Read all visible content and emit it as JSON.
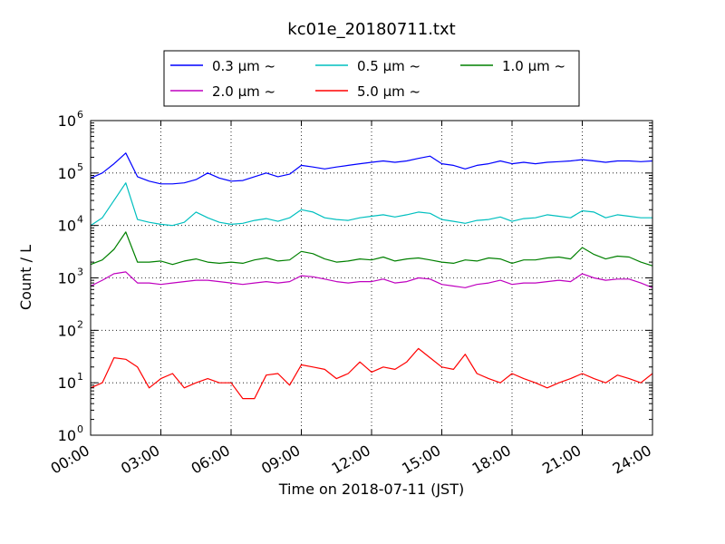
{
  "chart_data": {
    "type": "line",
    "title": "kc01e_20180711.txt",
    "xlabel": "Time on 2018-07-11 (JST)",
    "ylabel": "Count / L",
    "y_scale": "log",
    "ylim": [
      1,
      1000000
    ],
    "xlim": [
      "00:00",
      "24:00"
    ],
    "x_ticks": [
      "00:00",
      "03:00",
      "06:00",
      "09:00",
      "12:00",
      "15:00",
      "18:00",
      "21:00",
      "24:00"
    ],
    "y_ticks": [
      {
        "value": 1,
        "base": "10",
        "exp": "0"
      },
      {
        "value": 10,
        "base": "10",
        "exp": "1"
      },
      {
        "value": 100,
        "base": "10",
        "exp": "2"
      },
      {
        "value": 1000,
        "base": "10",
        "exp": "3"
      },
      {
        "value": 10000,
        "base": "10",
        "exp": "4"
      },
      {
        "value": 100000,
        "base": "10",
        "exp": "5"
      },
      {
        "value": 1000000,
        "base": "10",
        "exp": "6"
      }
    ],
    "grid": true,
    "legend_position": "top-center",
    "legend": [
      "0.3 μm ~",
      "0.5 μm ~",
      "1.0 μm ~",
      "2.0 μm ~",
      "5.0 μm ~"
    ],
    "x": [
      "00:00",
      "00:30",
      "01:00",
      "01:30",
      "02:00",
      "02:30",
      "03:00",
      "03:30",
      "04:00",
      "04:30",
      "05:00",
      "05:30",
      "06:00",
      "06:30",
      "07:00",
      "07:30",
      "08:00",
      "08:30",
      "09:00",
      "09:30",
      "10:00",
      "10:30",
      "11:00",
      "11:30",
      "12:00",
      "12:30",
      "13:00",
      "13:30",
      "14:00",
      "14:30",
      "15:00",
      "15:30",
      "16:00",
      "16:30",
      "17:00",
      "17:30",
      "18:00",
      "18:30",
      "19:00",
      "19:30",
      "20:00",
      "20:30",
      "21:00",
      "21:30",
      "22:00",
      "22:30",
      "23:00",
      "23:30",
      "24:00"
    ],
    "series": [
      {
        "name": "0.3 μm ~",
        "color": "#0000ff",
        "values": [
          80000,
          100000,
          150000,
          240000,
          85000,
          70000,
          62000,
          62000,
          65000,
          75000,
          100000,
          80000,
          70000,
          72000,
          85000,
          100000,
          85000,
          95000,
          140000,
          130000,
          120000,
          130000,
          140000,
          150000,
          160000,
          170000,
          160000,
          170000,
          190000,
          210000,
          150000,
          140000,
          120000,
          140000,
          150000,
          170000,
          150000,
          160000,
          150000,
          160000,
          165000,
          170000,
          180000,
          170000,
          160000,
          170000,
          170000,
          165000,
          170000
        ]
      },
      {
        "name": "0.5 μm ~",
        "color": "#00bfbf",
        "values": [
          10000,
          14000,
          30000,
          65000,
          13000,
          11500,
          10500,
          10000,
          11500,
          18000,
          14000,
          11500,
          10500,
          11000,
          12500,
          13500,
          12000,
          14000,
          20000,
          18000,
          14000,
          13000,
          12500,
          14000,
          15000,
          16000,
          14500,
          16000,
          18000,
          17000,
          13000,
          12000,
          11000,
          12500,
          13000,
          14500,
          12000,
          13500,
          14000,
          16000,
          15000,
          14000,
          19000,
          18000,
          14000,
          16000,
          15000,
          14000,
          14000
        ]
      },
      {
        "name": "1.0 μm ~",
        "color": "#008000",
        "values": [
          1800,
          2200,
          3500,
          7500,
          2000,
          2000,
          2100,
          1800,
          2100,
          2300,
          2000,
          1900,
          2000,
          1900,
          2200,
          2400,
          2100,
          2200,
          3200,
          2900,
          2300,
          2000,
          2100,
          2300,
          2200,
          2500,
          2100,
          2300,
          2400,
          2200,
          2000,
          1900,
          2200,
          2100,
          2400,
          2300,
          1900,
          2200,
          2200,
          2400,
          2500,
          2300,
          3800,
          2800,
          2300,
          2600,
          2500,
          2000,
          1700
        ]
      },
      {
        "name": "2.0 μm ~",
        "color": "#bf00bf",
        "values": [
          700,
          900,
          1200,
          1300,
          800,
          800,
          750,
          800,
          850,
          900,
          900,
          850,
          800,
          750,
          800,
          850,
          800,
          850,
          1100,
          1050,
          950,
          850,
          800,
          850,
          850,
          950,
          800,
          850,
          1000,
          950,
          750,
          700,
          650,
          750,
          800,
          900,
          750,
          800,
          800,
          850,
          900,
          850,
          1200,
          1000,
          900,
          950,
          950,
          800,
          650
        ]
      },
      {
        "name": "5.0 μm ~",
        "color": "#ff0000",
        "values": [
          8,
          10,
          30,
          28,
          20,
          8,
          12,
          15,
          8,
          10,
          12,
          10,
          10,
          5,
          5,
          14,
          15,
          9,
          22,
          20,
          18,
          12,
          15,
          25,
          16,
          20,
          18,
          25,
          45,
          30,
          20,
          18,
          35,
          15,
          12,
          10,
          15,
          12,
          10,
          8,
          10,
          12,
          15,
          12,
          10,
          14,
          12,
          10,
          15
        ]
      }
    ]
  }
}
